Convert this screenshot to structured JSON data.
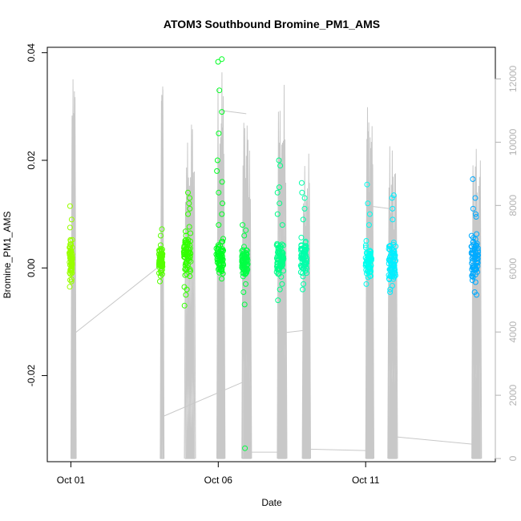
{
  "chart_data": {
    "type": "scatter",
    "title": "ATOM3 Southbound Bromine_PM1_AMS",
    "xlabel": "Date",
    "ylabel": "Bromine_PM1_AMS",
    "x_unit": "days since Oct 01",
    "xlim": [
      -0.8,
      14.4
    ],
    "ylim": [
      -0.036,
      0.041
    ],
    "y2lim": [
      -100,
      13000
    ],
    "x_ticks": [
      {
        "value": 0,
        "label": "Oct 01"
      },
      {
        "value": 5,
        "label": "Oct 06"
      },
      {
        "value": 10,
        "label": "Oct 11"
      }
    ],
    "y_ticks": [
      {
        "value": -0.02,
        "label": "-0.02"
      },
      {
        "value": 0.0,
        "label": "0.00"
      },
      {
        "value": 0.02,
        "label": "0.02"
      },
      {
        "value": 0.04,
        "label": "0.04"
      }
    ],
    "y2_ticks": [
      {
        "value": 0,
        "label": "0"
      },
      {
        "value": 2000,
        "label": "2000"
      },
      {
        "value": 4000,
        "label": "4000"
      },
      {
        "value": 6000,
        "label": "6000"
      },
      {
        "value": 8000,
        "label": "8000"
      },
      {
        "value": 10000,
        "label": "10000"
      },
      {
        "value": 12000,
        "label": "12000"
      }
    ],
    "point_clusters": [
      {
        "day": 0.0,
        "halfwidth": 0.05,
        "color": "#99ff00",
        "core": [
          -0.002,
          0.005
        ],
        "extremes": [
          0.0115,
          0.009,
          0.0075,
          -0.0035,
          -0.0025
        ]
      },
      {
        "day": 3.05,
        "halfwidth": 0.06,
        "color": "#55ff00",
        "core": [
          -0.001,
          0.004
        ],
        "extremes": [
          0.0072,
          0.006,
          -0.0025,
          -0.0015
        ]
      },
      {
        "day": 3.95,
        "halfwidth": 0.12,
        "color": "#33ff00",
        "core": [
          -0.002,
          0.007
        ],
        "extremes": [
          0.014,
          0.013,
          0.012,
          0.01,
          -0.007,
          -0.005,
          -0.004,
          0.011
        ]
      },
      {
        "day": 5.05,
        "halfwidth": 0.12,
        "color": "#00ff22",
        "core": [
          -0.001,
          0.005
        ],
        "extremes": [
          0.0388,
          0.0383,
          0.033,
          0.029,
          0.025,
          0.02,
          0.018,
          0.016,
          0.014,
          0.012,
          0.01,
          0.008
        ]
      },
      {
        "day": 5.9,
        "halfwidth": 0.1,
        "color": "#00ff44",
        "core": [
          -0.002,
          0.004
        ],
        "extremes": [
          0.008,
          0.007,
          0.006,
          -0.0068,
          -0.0045,
          -0.003,
          -0.0335
        ]
      },
      {
        "day": 7.1,
        "halfwidth": 0.12,
        "color": "#00ff88",
        "core": [
          -0.002,
          0.005
        ],
        "extremes": [
          0.02,
          0.019,
          0.015,
          0.014,
          0.012,
          0.01,
          0.008,
          -0.006,
          -0.004,
          -0.003
        ]
      },
      {
        "day": 7.9,
        "halfwidth": 0.1,
        "color": "#00ffaa",
        "core": [
          -0.002,
          0.005
        ],
        "extremes": [
          0.0158,
          0.014,
          0.013,
          0.011,
          0.009,
          -0.004,
          -0.003
        ]
      },
      {
        "day": 10.1,
        "halfwidth": 0.1,
        "color": "#00ffee",
        "core": [
          -0.002,
          0.004
        ],
        "extremes": [
          0.0155,
          0.012,
          0.01,
          0.008,
          -0.003
        ]
      },
      {
        "day": 10.9,
        "halfwidth": 0.12,
        "color": "#00eeff",
        "core": [
          -0.003,
          0.005
        ],
        "extremes": [
          0.0135,
          0.013,
          0.011,
          0.009,
          -0.004,
          -0.0045
        ]
      },
      {
        "day": 13.7,
        "halfwidth": 0.12,
        "color": "#00aaff",
        "core": [
          -0.003,
          0.006
        ],
        "extremes": [
          0.0165,
          0.013,
          0.011,
          0.01,
          0.0095,
          -0.0045,
          -0.005
        ]
      }
    ],
    "altitude_bursts": [
      {
        "start": 0.0,
        "end": 0.1,
        "peak": 12000
      },
      {
        "start": 3.03,
        "end": 3.08,
        "peak": 12200
      },
      {
        "start": 3.85,
        "end": 4.15,
        "peak": 10800
      },
      {
        "start": 4.95,
        "end": 5.15,
        "peak": 12300
      },
      {
        "start": 5.8,
        "end": 6.05,
        "peak": 11000
      },
      {
        "start": 7.0,
        "end": 7.25,
        "peak": 12000
      },
      {
        "start": 7.85,
        "end": 8.05,
        "peak": 10200
      },
      {
        "start": 10.0,
        "end": 10.2,
        "peak": 11600
      },
      {
        "start": 10.75,
        "end": 11.0,
        "peak": 10000
      },
      {
        "start": 13.6,
        "end": 13.85,
        "peak": 9800
      }
    ],
    "altitude_transits": [
      [
        0.05,
        3900,
        3.03,
        6100
      ],
      [
        3.05,
        6200,
        3.05,
        1300
      ],
      [
        3.05,
        1300,
        5.8,
        2400
      ],
      [
        5.1,
        11000,
        5.95,
        10900
      ],
      [
        5.95,
        200,
        7.0,
        200
      ],
      [
        7.0,
        3950,
        7.9,
        4050
      ],
      [
        7.9,
        300,
        10.0,
        250
      ],
      [
        10.0,
        8000,
        10.8,
        7900
      ],
      [
        10.85,
        700,
        13.65,
        450
      ]
    ],
    "legend": "none",
    "grid": false
  }
}
